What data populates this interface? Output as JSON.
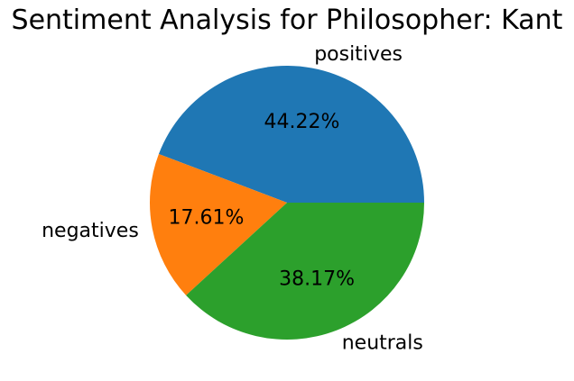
{
  "chart_data": {
    "type": "pie",
    "title": "Sentiment Analysis for  Philosopher: Kant",
    "labels": [
      "positives",
      "negatives",
      "neutrals"
    ],
    "values": [
      44.22,
      17.61,
      38.17
    ],
    "percent_labels": [
      "44.22%",
      "17.61%",
      "38.17%"
    ],
    "colors": [
      "#1f77b4",
      "#ff7f0e",
      "#2ca02c"
    ],
    "start_angle_deg": 0,
    "direction": "counterclockwise",
    "legend": "none"
  }
}
